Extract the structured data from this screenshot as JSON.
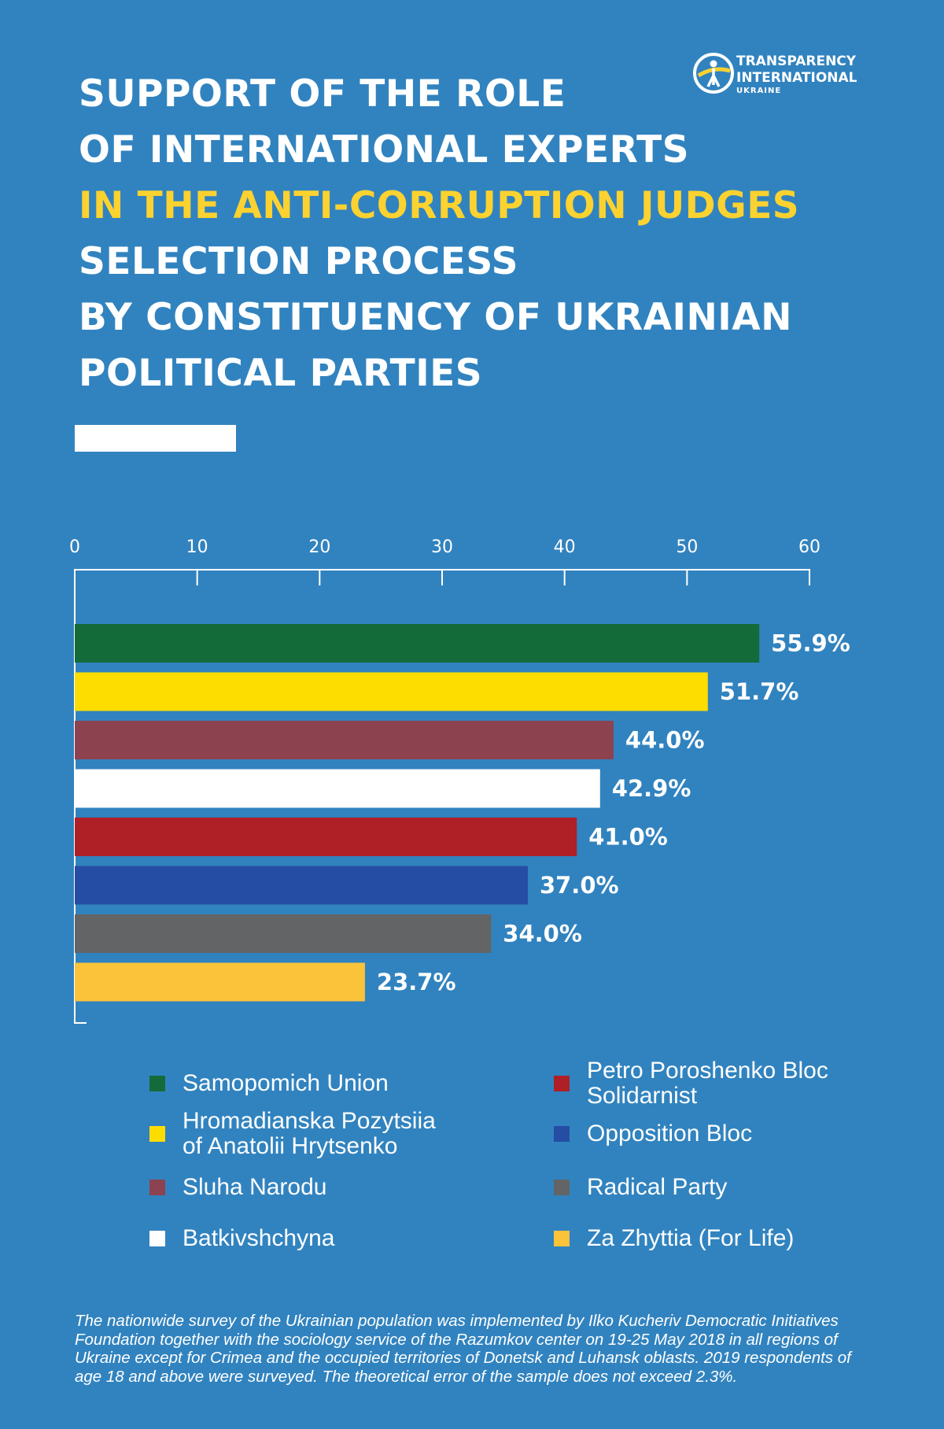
{
  "header": {
    "title_lines": [
      "SUPPORT OF THE ROLE",
      "OF INTERNATIONAL EXPERTS",
      "IN THE ANTI-CORRUPTION JUDGES",
      "SELECTION PROCESS",
      "BY CONSTITUENCY OF UKRAINIAN",
      "POLITICAL PARTIES"
    ],
    "highlight_color": "#fbd230"
  },
  "logo": {
    "line1": "TRANSPARENCY",
    "line2": "INTERNATIONAL",
    "line3": "UKRAINE"
  },
  "chart_data": {
    "type": "bar",
    "orientation": "horizontal",
    "xlim": [
      0,
      60
    ],
    "x_ticks": [
      0,
      10,
      20,
      30,
      40,
      50,
      60
    ],
    "x_tick_labels": [
      "0",
      "10",
      "20",
      "30",
      "40",
      "50",
      "60"
    ],
    "grid": false,
    "legend_position": "bottom",
    "categories": [
      "Samopomich Union",
      "Hromadianska Pozytsiia\nof Anatolii Hrytsenko",
      "Sluha Narodu",
      "Batkivshchyna",
      "Petro Poroshenko Bloc\nSolidarnist",
      "Opposition Bloc",
      "Radical Party",
      "Za Zhyttia (For Life)"
    ],
    "values": [
      55.9,
      51.7,
      44.0,
      42.9,
      41.0,
      37.0,
      34.0,
      23.7
    ],
    "value_labels": [
      "55.9%",
      "51.7%",
      "44.0%",
      "42.9%",
      "41.0%",
      "37.0%",
      "34.0%",
      "23.7%"
    ],
    "colors": [
      "#146b3a",
      "#fddd00",
      "#8d4250",
      "#ffffff",
      "#ae1f26",
      "#254da3",
      "#636466",
      "#fac33a"
    ]
  },
  "footnote": "The nationwide survey of the Ukrainian population was implemented by Ilko Kucheriv Democratic Initiatives Foundation together with the sociology service of the Razumkov center on 19-25 May 2018 in all regions of Ukraine except for Crimea and the occupied territories of Donetsk and Luhansk oblasts. 2019 respondents of age 18 and above were surveyed. The theoretical error of the sample does not exceed 2.3%."
}
